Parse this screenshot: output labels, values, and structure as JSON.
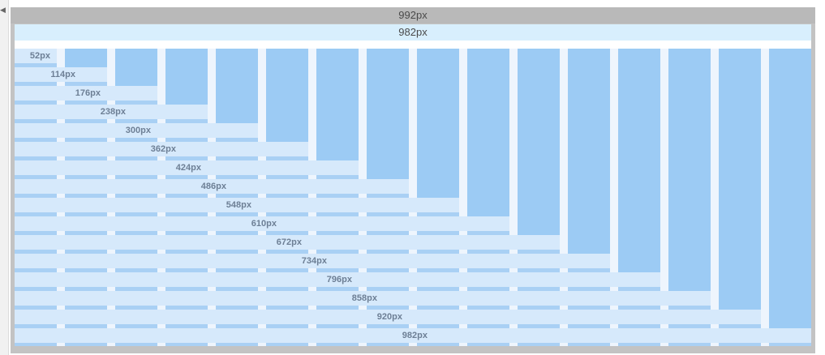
{
  "outer_width_label": "992px",
  "inner_width_label": "982px",
  "column_count": 16,
  "rows": [
    {
      "label": "52px"
    },
    {
      "label": "114px"
    },
    {
      "label": "176px"
    },
    {
      "label": "238px"
    },
    {
      "label": "300px"
    },
    {
      "label": "362px"
    },
    {
      "label": "424px"
    },
    {
      "label": "486px"
    },
    {
      "label": "548px"
    },
    {
      "label": "610px"
    },
    {
      "label": "672px"
    },
    {
      "label": "734px"
    },
    {
      "label": "796px"
    },
    {
      "label": "858px"
    },
    {
      "label": "920px"
    },
    {
      "label": "982px"
    }
  ],
  "colors": {
    "outer_bar": "#b9b9b9",
    "inner_bar": "#d8effd",
    "column": "#9ccbf4",
    "row": "#d6e9fb",
    "gutter": "#eef5fd"
  }
}
